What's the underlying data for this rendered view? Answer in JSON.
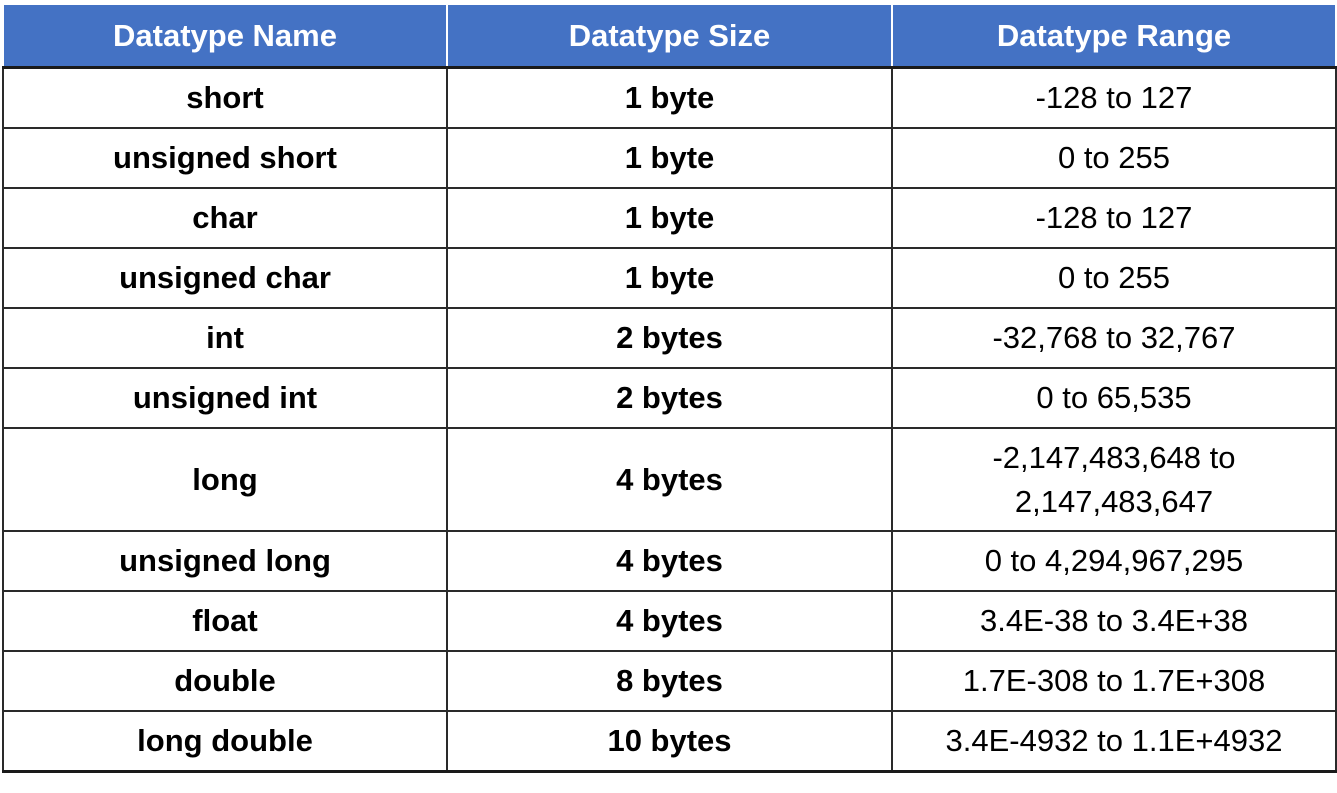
{
  "table": {
    "headers": [
      "Datatype Name",
      "Datatype Size",
      "Datatype Range"
    ],
    "rows": [
      {
        "name": "short",
        "size": "1 byte",
        "range": "-128 to 127"
      },
      {
        "name": "unsigned short",
        "size": "1 byte",
        "range": "0 to 255"
      },
      {
        "name": "char",
        "size": "1 byte",
        "range": "-128 to 127"
      },
      {
        "name": "unsigned char",
        "size": "1 byte",
        "range": "0 to 255"
      },
      {
        "name": "int",
        "size": "2 bytes",
        "range": "-32,768 to 32,767"
      },
      {
        "name": "unsigned int",
        "size": "2 bytes",
        "range": "0 to 65,535"
      },
      {
        "name": "long",
        "size": "4 bytes",
        "range": "-2,147,483,648 to 2,147,483,647"
      },
      {
        "name": "unsigned long",
        "size": "4 bytes",
        "range": "0 to 4,294,967,295"
      },
      {
        "name": "float",
        "size": "4 bytes",
        "range": "3.4E-38 to 3.4E+38"
      },
      {
        "name": "double",
        "size": "8 bytes",
        "range": "1.7E-308 to 1.7E+308"
      },
      {
        "name": "long double",
        "size": "10 bytes",
        "range": "3.4E-4932 to 1.1E+4932"
      }
    ]
  },
  "colors": {
    "header_bg": "#4472c4",
    "header_text": "#ffffff",
    "border": "#2a2a2a"
  }
}
